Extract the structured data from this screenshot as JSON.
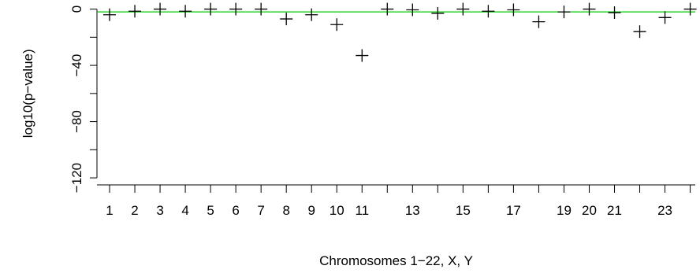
{
  "chart_data": {
    "type": "scatter",
    "xlabel": "Chromosomes 1−22, X, Y",
    "ylabel": "log10(p−value)",
    "x_tick_values": [
      1,
      2,
      3,
      4,
      5,
      6,
      7,
      8,
      9,
      10,
      11,
      12,
      13,
      14,
      15,
      16,
      17,
      18,
      19,
      20,
      21,
      22,
      23,
      24
    ],
    "x_tick_labels": [
      "1",
      "2",
      "3",
      "4",
      "5",
      "6",
      "7",
      "8",
      "9",
      "10",
      "11",
      "",
      "13",
      "",
      "15",
      "",
      "17",
      "",
      "19",
      "20",
      "21",
      "",
      "23",
      ""
    ],
    "y_ticks": [
      0,
      -20,
      -40,
      -60,
      -80,
      -100,
      -120
    ],
    "y_tick_labels": [
      "0",
      "",
      "−40",
      "",
      "−80",
      "",
      "−120"
    ],
    "xlim": [
      0.5,
      24.2
    ],
    "ylim": [
      -125,
      2
    ],
    "points": {
      "x": [
        1,
        2,
        3,
        4,
        5,
        6,
        7,
        8,
        9,
        10,
        11,
        12,
        13,
        14,
        15,
        16,
        17,
        18,
        19,
        20,
        21,
        22,
        23,
        24
      ],
      "y": [
        -4,
        -1.5,
        0,
        -1.5,
        0,
        0,
        0,
        -7,
        -4,
        -11,
        -33,
        0,
        -0.5,
        -3,
        0,
        -1.5,
        -0.5,
        -9,
        -2,
        0,
        -2.5,
        -16,
        -6,
        0
      ]
    },
    "reference_line": {
      "y": -2,
      "color": "#00cc00"
    },
    "marker": "+",
    "grid": false
  }
}
